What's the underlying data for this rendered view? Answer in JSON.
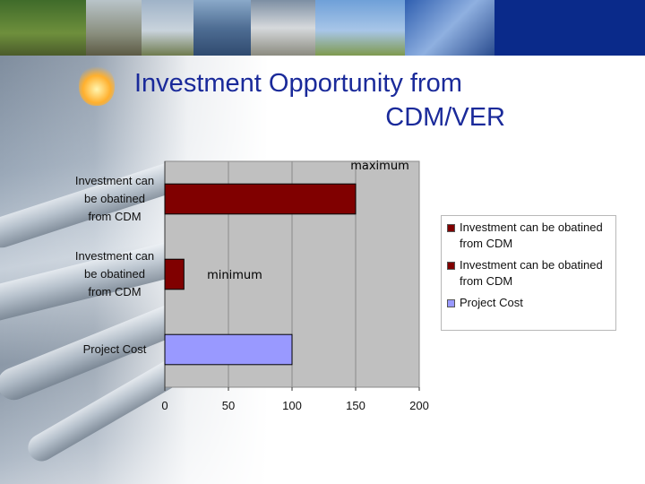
{
  "slide": {
    "title_line1": "Investment Opportunity from",
    "title_line2": "CDM/VER"
  },
  "colors": {
    "title": "#1a2a9a",
    "plot_bg": "#c0c0c0",
    "bar_dark_red": "#800000",
    "bar_lavender": "#9999ff"
  },
  "chart_data": {
    "type": "bar",
    "orientation": "horizontal",
    "categories": [
      "Investment can be obatined from CDM",
      "Investment can be obatined from CDM",
      "Project Cost"
    ],
    "values": [
      150,
      15,
      100
    ],
    "bar_colors": [
      "#800000",
      "#800000",
      "#9999ff"
    ],
    "annotations": [
      "maximum",
      "minimum",
      ""
    ],
    "xlim": [
      0,
      200
    ],
    "xticks": [
      0,
      50,
      100,
      150,
      200
    ],
    "grid": true,
    "legend_position": "right",
    "legend": [
      {
        "label": "Investment can be obatined from CDM",
        "color": "#800000"
      },
      {
        "label": "Investment can be obatined from CDM",
        "color": "#800000"
      },
      {
        "label": "Project Cost",
        "color": "#9999ff"
      }
    ]
  }
}
